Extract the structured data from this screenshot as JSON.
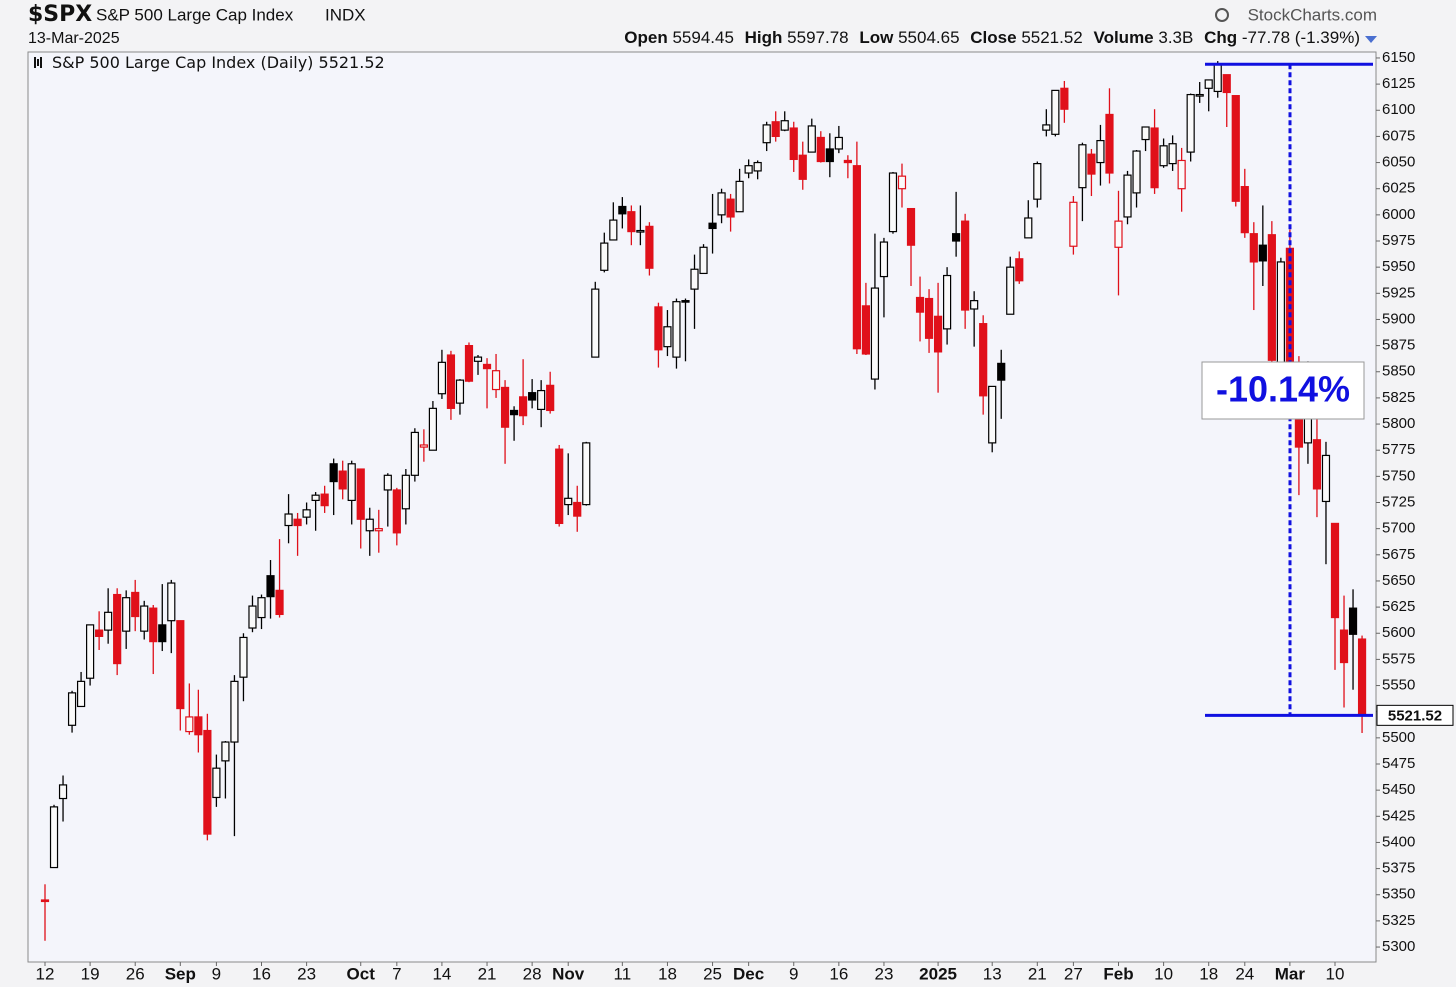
{
  "header": {
    "symbol": "$SPX",
    "name": "S&P 500 Large Cap Index",
    "exchange": "INDX",
    "source": "StockCharts.com",
    "date": "13-Mar-2025",
    "ohlc_labels": [
      "Open",
      "High",
      "Low",
      "Close",
      "Volume",
      "Chg"
    ],
    "volume": "3.3B",
    "change": "-77.78 (-1.39%)"
  },
  "chart_data": {
    "type": "candlestick",
    "legend": "S&P 500 Large Cap Index (Daily)",
    "up_color": "#000000",
    "down_color": "#e0101a",
    "categories": [
      "12",
      null,
      null,
      null,
      null,
      "19",
      null,
      null,
      null,
      null,
      "26",
      null,
      null,
      null,
      null,
      "Sep",
      null,
      null,
      null,
      "9",
      null,
      null,
      null,
      null,
      "16",
      null,
      null,
      null,
      null,
      "23",
      null,
      null,
      null,
      null,
      null,
      "Oct",
      null,
      null,
      null,
      "7",
      null,
      null,
      null,
      null,
      "14",
      null,
      null,
      null,
      null,
      "21",
      null,
      null,
      null,
      null,
      "28",
      null,
      null,
      null,
      "Nov",
      null,
      null,
      null,
      null,
      null,
      "11",
      null,
      null,
      null,
      null,
      "18",
      null,
      null,
      null,
      null,
      "25",
      null,
      null,
      null,
      "Dec",
      null,
      null,
      null,
      null,
      "9",
      null,
      null,
      null,
      null,
      "16",
      null,
      null,
      null,
      null,
      "23",
      null,
      null,
      null,
      null,
      null,
      "2025",
      null,
      null,
      null,
      null,
      null,
      "13",
      null,
      null,
      null,
      null,
      "21",
      null,
      null,
      null,
      "27",
      null,
      null,
      null,
      null,
      "Feb",
      null,
      null,
      null,
      null,
      "10",
      null,
      null,
      null,
      null,
      "18",
      null,
      null,
      null,
      "24",
      null,
      null,
      null,
      null,
      "Mar",
      null,
      null,
      null,
      null,
      "10",
      null,
      null,
      null
    ],
    "open": [
      5345,
      5376,
      5442,
      5512,
      5530,
      5557,
      5603,
      5603,
      5637,
      5602,
      5639,
      5602,
      5624,
      5608,
      5612,
      5612,
      5506,
      5520,
      5507,
      5443,
      5478,
      5496,
      5558,
      5605,
      5615,
      5655,
      5641,
      5703,
      5709,
      5711,
      5727,
      5733,
      5762,
      5755,
      5727,
      5757,
      5698,
      5698,
      5737,
      5737,
      5719,
      5751,
      5778,
      5775,
      5829,
      5866,
      5820,
      5875,
      5860,
      5857,
      5833,
      5835,
      5813,
      5826,
      5830,
      5814,
      5837,
      5776,
      5723,
      5725,
      5723,
      5864,
      5947,
      5976,
      6008,
      6003,
      5985,
      5989,
      5912,
      5874,
      5864,
      5918,
      5929,
      5944,
      5992,
      6000,
      6015,
      6003,
      6040,
      6042,
      6069,
      6089,
      6081,
      6083,
      6057,
      6060,
      6074,
      6063,
      6063,
      6052,
      6047,
      5913,
      5843,
      5941,
      5984,
      6025,
      6006,
      5921,
      5920,
      5903,
      5891,
      5982,
      5994,
      5910,
      5896,
      5782,
      5858,
      5905,
      5958,
      5978,
      6015,
      6081,
      6077,
      6121,
      5970,
      6026,
      6058,
      6050,
      6096,
      5969,
      5998,
      6021,
      6072,
      6083,
      6047,
      6049,
      6025,
      6060,
      6115,
      6121,
      6118,
      6134,
      6114,
      6027,
      5982,
      5971,
      5981,
      5857,
      5968,
      5811,
      5782,
      5785,
      5726,
      5705,
      5603,
      5624,
      5594.45
    ],
    "high": [
      5360,
      5436,
      5464,
      5545,
      5563,
      5608,
      5621,
      5643,
      5643,
      5641,
      5651,
      5631,
      5627,
      5647,
      5651,
      5612,
      5552,
      5546,
      5523,
      5484,
      5497,
      5560,
      5600,
      5636,
      5637,
      5670,
      5690,
      5733,
      5715,
      5725,
      5735,
      5741,
      5767,
      5765,
      5765,
      5757,
      5720,
      5718,
      5753,
      5739,
      5757,
      5796,
      5795,
      5822,
      5871,
      5870,
      5843,
      5878,
      5866,
      5863,
      5867,
      5842,
      5817,
      5862,
      5843,
      5842,
      5850,
      5780,
      5772,
      5741,
      5783,
      5936,
      5983,
      6012,
      6017,
      6009,
      6009,
      5993,
      5916,
      5909,
      5920,
      5920,
      5962,
      5972,
      6020,
      6025,
      6020,
      6044,
      6053,
      6052,
      6089,
      6099,
      6099,
      6089,
      6070,
      6092,
      6080,
      6078,
      6085,
      6057,
      6070,
      5935,
      5982,
      5978,
      6041,
      6049,
      6006,
      5941,
      5929,
      5935,
      5950,
      6022,
      6001,
      5927,
      5904,
      5836,
      5871,
      5960,
      5965,
      6014,
      6051,
      6101,
      6119,
      6128,
      6018,
      6069,
      6063,
      6086,
      6121,
      6023,
      6042,
      6062,
      6084,
      6101,
      6073,
      6076,
      6064,
      6116,
      6127,
      6129,
      6147,
      6134,
      6114,
      6044,
      5993,
      6009,
      5994,
      5959,
      5986,
      5865,
      5860,
      5812,
      5783,
      5705,
      5636,
      5642,
      5597.78
    ],
    "low": [
      5306,
      5376,
      5420,
      5505,
      5530,
      5550,
      5584,
      5590,
      5560,
      5585,
      5602,
      5594,
      5561,
      5583,
      5581,
      5507,
      5503,
      5486,
      5402,
      5434,
      5442,
      5406,
      5535,
      5601,
      5604,
      5614,
      5615,
      5686,
      5674,
      5704,
      5698,
      5715,
      5713,
      5728,
      5704,
      5681,
      5674,
      5677,
      5702,
      5684,
      5704,
      5745,
      5764,
      5775,
      5824,
      5804,
      5809,
      5840,
      5847,
      5815,
      5825,
      5762,
      5784,
      5799,
      5815,
      5797,
      5810,
      5702,
      5713,
      5697,
      5722,
      5864,
      5945,
      5976,
      5987,
      5971,
      5971,
      5942,
      5854,
      5865,
      5853,
      5860,
      5891,
      5944,
      5963,
      5992,
      5984,
      6003,
      6035,
      6034,
      6061,
      6070,
      6080,
      6041,
      6024,
      6060,
      6050,
      6036,
      6059,
      6035,
      5867,
      5866,
      5833,
      5902,
      5982,
      6007,
      5932,
      5879,
      5868,
      5830,
      5876,
      5960,
      5891,
      5874,
      5809,
      5773,
      5805,
      5905,
      5934,
      5978,
      6007,
      6075,
      6075,
      6088,
      5962,
      5994,
      6018,
      6028,
      6030,
      5923,
      5991,
      6007,
      6061,
      6020,
      6045,
      6042,
      6003,
      6051,
      6107,
      6099,
      6112,
      6084,
      6008,
      5978,
      5909,
      5932,
      5858,
      5837,
      5810,
      5732,
      5762,
      5711,
      5666,
      5565,
      5529,
      5546,
      5504.65
    ],
    "close": [
      5344,
      5434,
      5455,
      5543,
      5554,
      5608,
      5597,
      5620,
      5571,
      5634,
      5616,
      5626,
      5592,
      5592,
      5648,
      5528,
      5520,
      5503,
      5408,
      5471,
      5496,
      5554,
      5596,
      5626,
      5634,
      5635,
      5618,
      5714,
      5703,
      5718,
      5732,
      5722,
      5745,
      5738,
      5762,
      5709,
      5709,
      5700,
      5751,
      5696,
      5751,
      5792,
      5780,
      5815,
      5859,
      5815,
      5842,
      5841,
      5864,
      5853,
      5851,
      5797,
      5809,
      5808,
      5823,
      5832,
      5813,
      5705,
      5729,
      5712,
      5782,
      5929,
      5973,
      5995,
      6001,
      5984,
      5985,
      5949,
      5871,
      5893,
      5917,
      5917,
      5948,
      5969,
      5987,
      6021,
      5998,
      6032,
      6047,
      6050,
      6086,
      6075,
      6090,
      6053,
      6034,
      6085,
      6051,
      6051,
      6074,
      6050,
      5872,
      5867,
      5930,
      5974,
      6040,
      6037,
      5971,
      5907,
      5882,
      5869,
      5942,
      5975,
      5909,
      5918,
      5827,
      5836,
      5842,
      5950,
      5937,
      5997,
      6049,
      6086,
      6119,
      6101,
      6012,
      6067,
      6039,
      6071,
      6040,
      5994,
      6038,
      6061,
      6084,
      6026,
      6066,
      6068,
      6052,
      6115,
      6115,
      6129,
      6144,
      6117,
      6013,
      5983,
      5955,
      5956,
      5861,
      5955,
      5850,
      5778,
      5842,
      5738,
      5770,
      5615,
      5572,
      5599,
      5521.52
    ],
    "ylim": [
      5285.7,
      6155.7
    ],
    "yticks": [
      5300,
      5325,
      5350,
      5375,
      5400,
      5425,
      5450,
      5475,
      5500,
      5525,
      5550,
      5575,
      5600,
      5625,
      5650,
      5675,
      5700,
      5725,
      5750,
      5775,
      5800,
      5825,
      5850,
      5875,
      5900,
      5925,
      5950,
      5975,
      6000,
      6025,
      6050,
      6075,
      6100,
      6125,
      6150
    ],
    "grid": false,
    "annotation": {
      "label": "-10.14%",
      "top": 6144,
      "bottom": 5521.52,
      "color": "#1010e0"
    }
  }
}
